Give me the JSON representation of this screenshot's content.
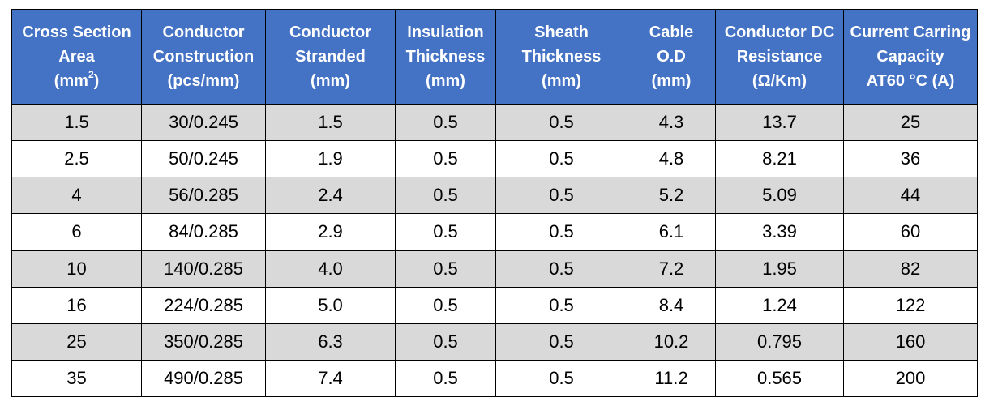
{
  "table": {
    "columns": [
      {
        "lines": [
          "Cross Section",
          "Area"
        ],
        "unit_open": "(mm",
        "unit_sup": "2",
        "unit_close": ")"
      },
      {
        "lines": [
          "Conductor",
          "Construction",
          "(pcs/mm)"
        ]
      },
      {
        "lines": [
          "Conductor",
          "Stranded",
          "(mm)"
        ]
      },
      {
        "lines": [
          "Insulation",
          "Thickness",
          "(mm)"
        ]
      },
      {
        "lines": [
          "Sheath",
          "Thickness",
          "(mm)"
        ]
      },
      {
        "lines": [
          "Cable",
          "O.D",
          "(mm)"
        ]
      },
      {
        "lines": [
          "Conductor DC",
          "Resistance",
          "(Ω/Km)"
        ]
      },
      {
        "lines": [
          "Current Carring",
          "Capacity",
          "AT60 °C (A)"
        ]
      }
    ],
    "rows": [
      [
        "1.5",
        "30/0.245",
        "1.5",
        "0.5",
        "0.5",
        "4.3",
        "13.7",
        "25"
      ],
      [
        "2.5",
        "50/0.245",
        "1.9",
        "0.5",
        "0.5",
        "4.8",
        "8.21",
        "36"
      ],
      [
        "4",
        "56/0.285",
        "2.4",
        "0.5",
        "0.5",
        "5.2",
        "5.09",
        "44"
      ],
      [
        "6",
        "84/0.285",
        "2.9",
        "0.5",
        "0.5",
        "6.1",
        "3.39",
        "60"
      ],
      [
        "10",
        "140/0.285",
        "4.0",
        "0.5",
        "0.5",
        "7.2",
        "1.95",
        "82"
      ],
      [
        "16",
        "224/0.285",
        "5.0",
        "0.5",
        "0.5",
        "8.4",
        "1.24",
        "122"
      ],
      [
        "25",
        "350/0.285",
        "6.3",
        "0.5",
        "0.5",
        "10.2",
        "0.795",
        "160"
      ],
      [
        "35",
        "490/0.285",
        "7.4",
        "0.5",
        "0.5",
        "11.2",
        "0.565",
        "200"
      ]
    ]
  },
  "colors": {
    "header_bg": "#4472c4",
    "header_text": "#ffffff",
    "row_shade": "#d9d9d9",
    "border": "#000000"
  }
}
